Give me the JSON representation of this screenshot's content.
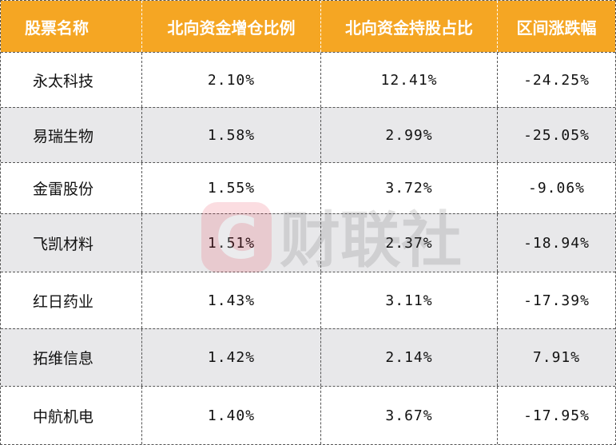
{
  "headers": [
    "股票名称",
    "北向资金增仓比例",
    "北向资金持股占比",
    "区间涨跌幅"
  ],
  "rows": [
    {
      "name": "永太科技",
      "increase": "2.10%",
      "holding": "12.41%",
      "change": "-24.25%"
    },
    {
      "name": "易瑞生物",
      "increase": "1.58%",
      "holding": "2.99%",
      "change": "-25.05%"
    },
    {
      "name": "金雷股份",
      "increase": "1.55%",
      "holding": "3.72%",
      "change": "-9.06%"
    },
    {
      "name": "飞凯材料",
      "increase": "1.51%",
      "holding": "2.37%",
      "change": "-18.94%"
    },
    {
      "name": "红日药业",
      "increase": "1.43%",
      "holding": "3.11%",
      "change": "-17.39%"
    },
    {
      "name": "拓维信息",
      "increase": "1.42%",
      "holding": "2.14%",
      "change": "7.91%"
    },
    {
      "name": "中航机电",
      "increase": "1.40%",
      "holding": "3.67%",
      "change": "-17.95%"
    }
  ],
  "watermark": {
    "text": "财联社",
    "logo_letter": "C",
    "logo_color": "#e8334a"
  },
  "colors": {
    "header_bg": "#f5a623",
    "alt_row_bg": "#e8e8ea"
  }
}
